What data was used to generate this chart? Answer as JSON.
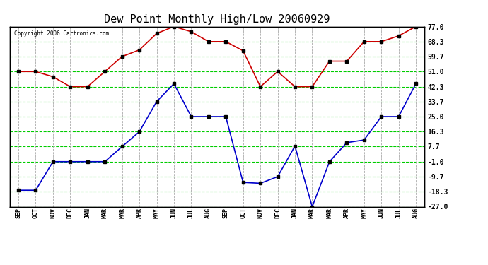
{
  "title": "Dew Point Monthly High/Low 20060929",
  "copyright": "Copyright 2006 Cartronics.com",
  "x_labels": [
    "SEP",
    "OCT",
    "NOV",
    "DEC",
    "JAN",
    "MAR",
    "MAR",
    "APR",
    "MAY",
    "JUN",
    "JUL",
    "AUG",
    "SEP",
    "OCT",
    "NOV",
    "DEC",
    "JAN",
    "MAR",
    "MAR",
    "APR",
    "MAY",
    "JUN",
    "JUL",
    "AUG"
  ],
  "high_values": [
    51.0,
    51.0,
    48.0,
    42.3,
    42.3,
    51.0,
    59.7,
    63.5,
    73.0,
    77.0,
    74.0,
    68.3,
    68.3,
    63.0,
    42.3,
    51.0,
    42.3,
    42.3,
    57.0,
    57.0,
    68.3,
    68.3,
    71.6,
    77.0
  ],
  "low_values": [
    -17.5,
    -17.5,
    -1.0,
    -1.0,
    -1.0,
    -1.0,
    7.7,
    16.3,
    33.7,
    44.0,
    25.0,
    25.0,
    25.0,
    -13.0,
    -13.5,
    -9.7,
    8.0,
    -27.0,
    -1.0,
    10.0,
    11.5,
    25.0,
    25.0,
    44.0
  ],
  "y_ticks": [
    77.0,
    68.3,
    59.7,
    51.0,
    42.3,
    33.7,
    25.0,
    16.3,
    7.7,
    -1.0,
    -9.7,
    -18.3,
    -27.0
  ],
  "ylim": [
    -27.0,
    77.0
  ],
  "high_color": "#cc0000",
  "low_color": "#0000cc",
  "grid_color": "#00cc00",
  "vgrid_color": "#aaaaaa",
  "bg_color": "#ffffff",
  "title_fontsize": 11,
  "marker": "s",
  "marker_size": 3
}
